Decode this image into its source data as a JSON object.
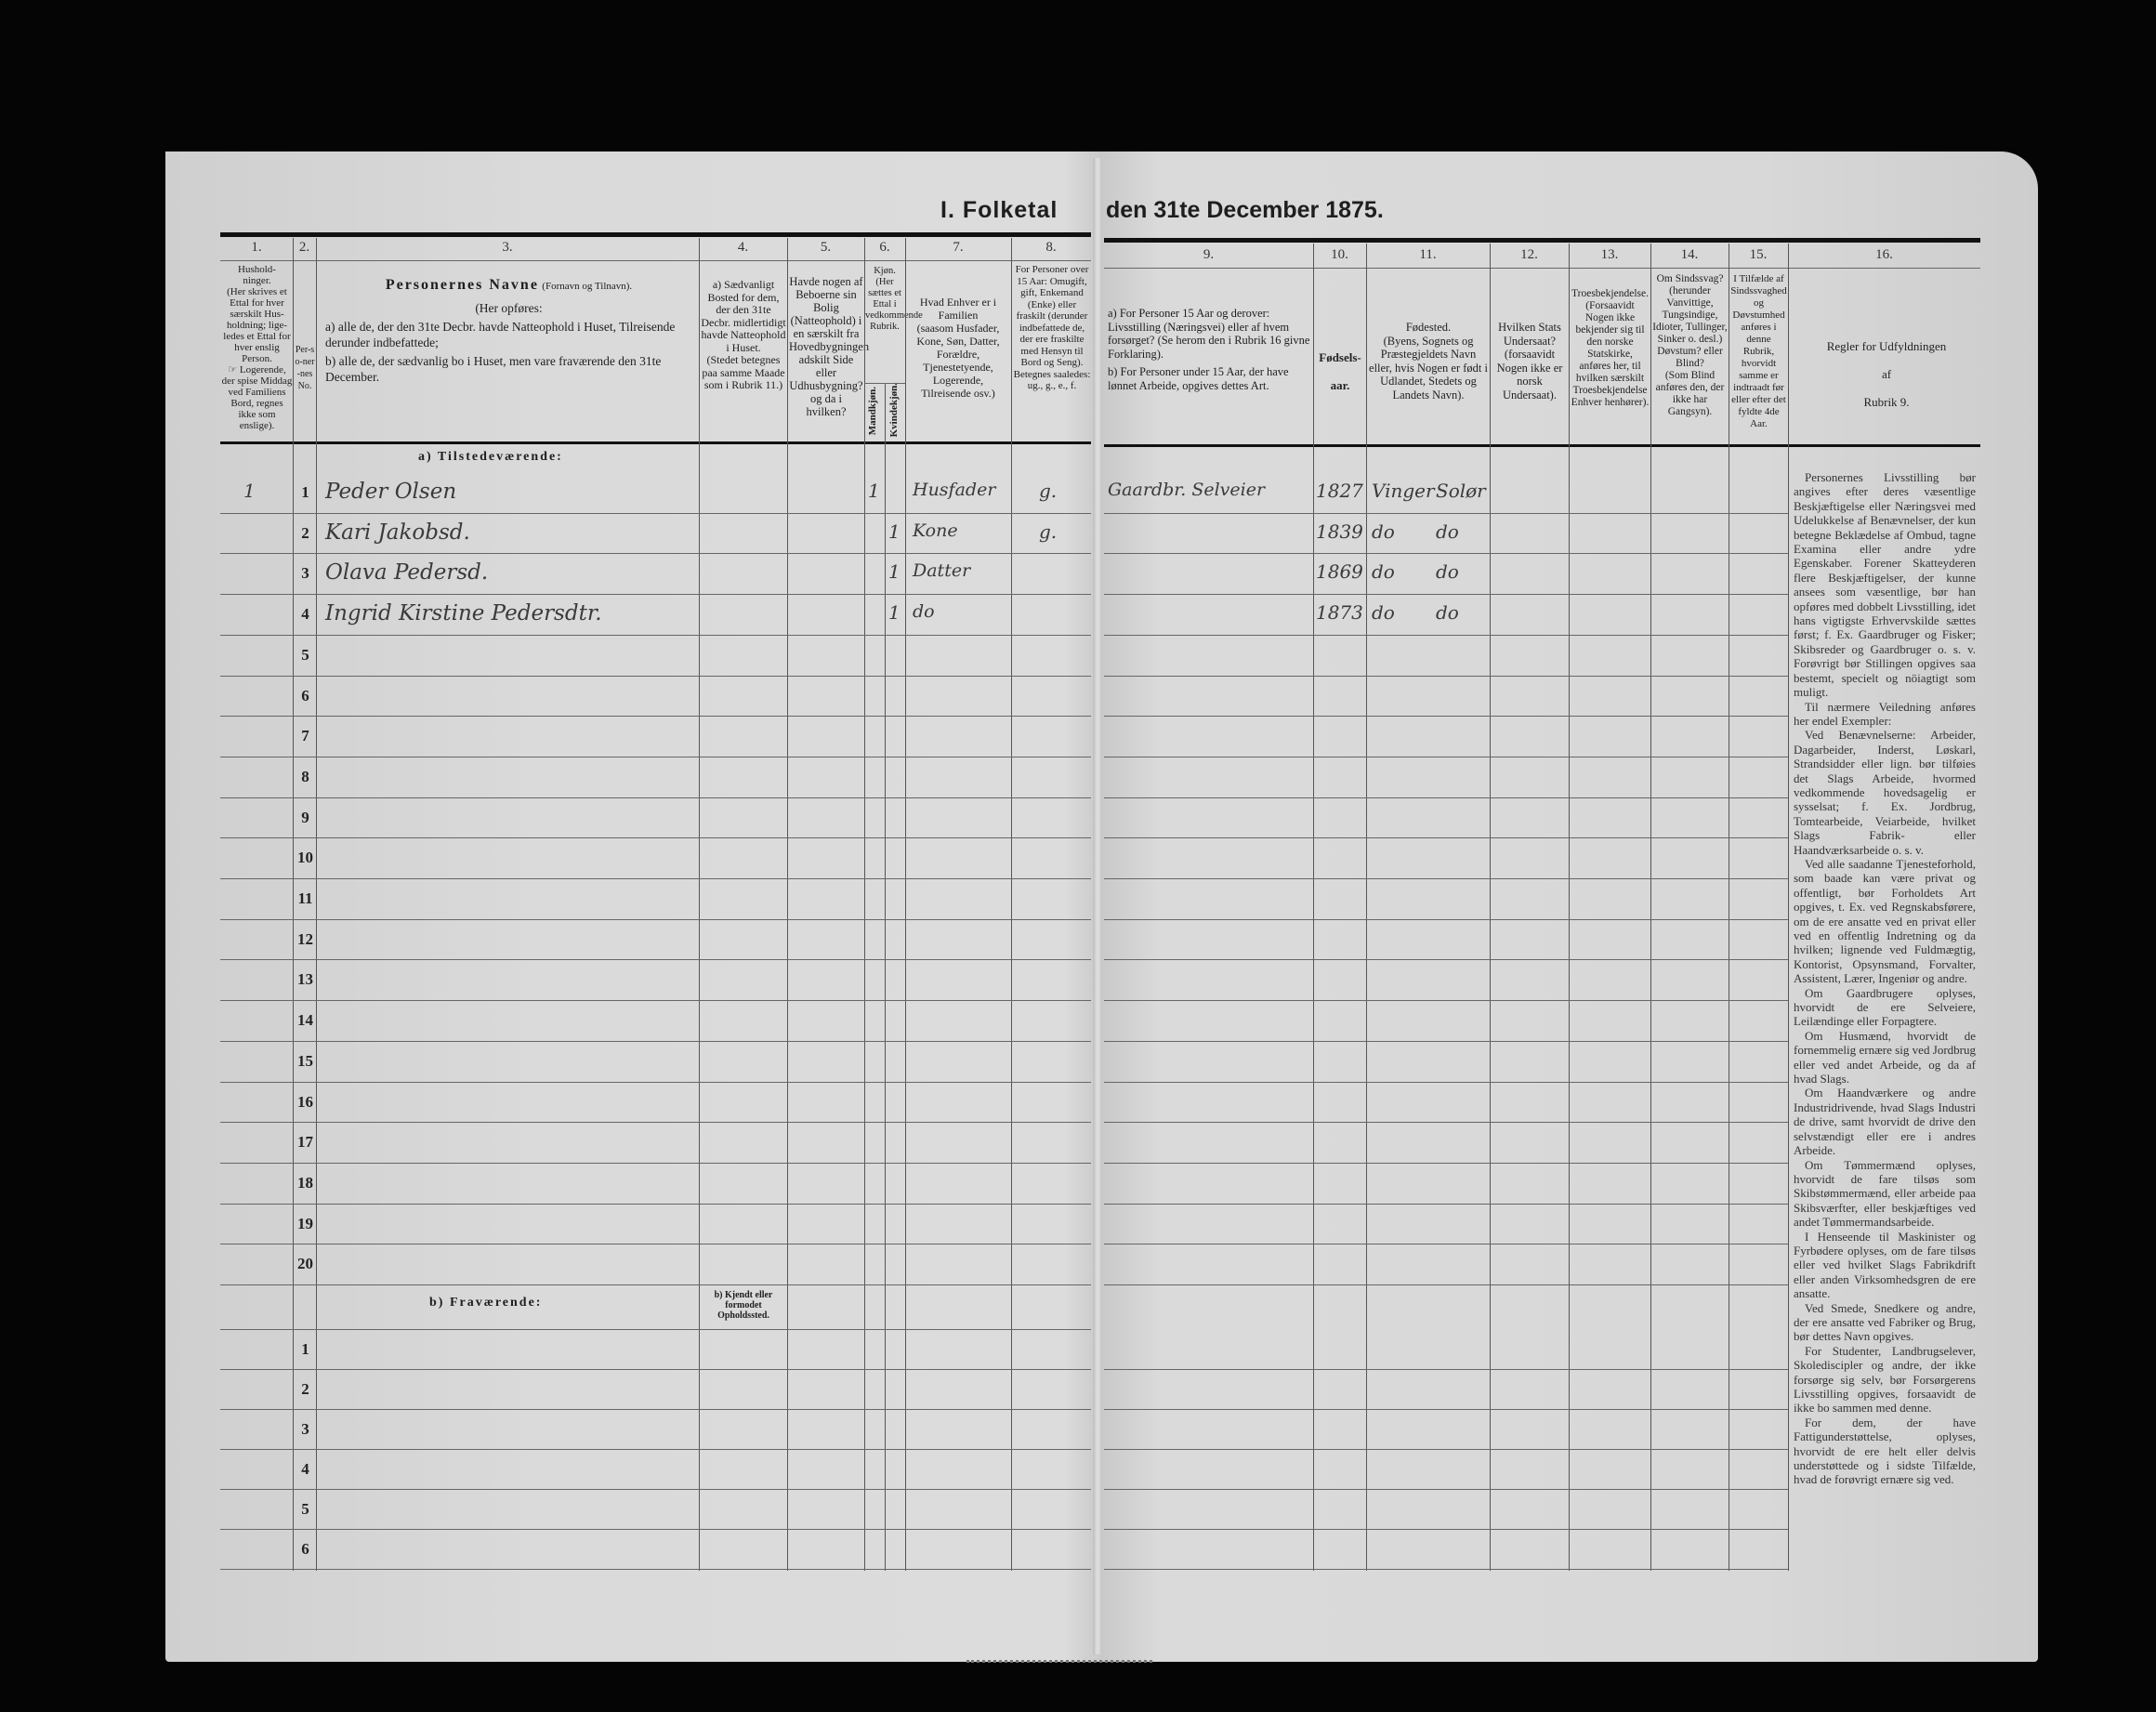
{
  "title": {
    "left": "I. Folketal",
    "right": "den 31te December 1875."
  },
  "columns_left": [
    {
      "num": "1.",
      "text": "Hushold-\nninger.\n(Her skrives et Ettal for hver særskilt Hus-holdning; lige-ledes et Ettal for hver enslig Person.\n☞ Logerende, der spise Middag ved Familiens Bord, regnes ikke som enslige)."
    },
    {
      "num": "2.",
      "text": "Per-so-ner-nes No."
    },
    {
      "num": "3.",
      "title": "Personernes Navne",
      "title_note": "(Fornavn og Tilnavn).",
      "sub": "(Her opføres:",
      "a": "a) alle de, der den 31te Decbr. havde Natteophold i Huset, Tilreisende derunder indbefattede;",
      "b": "b) alle de, der sædvanlig bo i Huset, men vare fraværende den 31te December."
    },
    {
      "num": "4.",
      "text": "a) Sædvanligt Bosted for dem, der den 31te Decbr. midlertidigt havde Natteophold i Huset.\n(Stedet betegnes paa samme Maade som i Rubrik 11.)"
    },
    {
      "num": "5.",
      "text": "Havde nogen af Beboerne sin Bolig (Natteophold) i en særskilt fra Hovedbygningen adskilt Side eller Udhusbygning? og da i hvilken?"
    },
    {
      "num": "6.",
      "text": "Kjøn.\n(Her sættes et Ettal i vedkommende Rubrik.",
      "male": "Mandkjøn.",
      "female": "Kvindekjøn."
    },
    {
      "num": "7.",
      "text": "Hvad Enhver er i Familien\n(saasom Husfader, Kone, Søn, Datter, Forældre, Tjenestetyende, Logerende, Tilreisende osv.)"
    },
    {
      "num": "8.",
      "text": "For Personer over 15 Aar: Omugift, gift, Enkemand (Enke) eller fraskilt (derunder indbefattede de, der ere fraskilte med Hensyn til Bord og Seng).\nBetegnes saaledes: ug., g., e., f."
    }
  ],
  "columns_right": [
    {
      "num": "9.",
      "a": "a) For Personer 15 Aar og derover: Livsstilling (Næringsvei) eller af hvem forsørget? (Se herom den i Rubrik 16 givne Forklaring).",
      "b": "b) For Personer under 15 Aar, der have lønnet Arbeide, opgives dettes Art."
    },
    {
      "num": "10.",
      "text": "Fødsels-\naar."
    },
    {
      "num": "11.",
      "text": "Fødested.\n(Byens, Sognets og Præstegjeldets Navn eller, hvis Nogen er født i Udlandet, Stedets og Landets Navn)."
    },
    {
      "num": "12.",
      "text": "Hvilken Stats Undersaat?\n(forsaavidt Nogen ikke er norsk Undersaat)."
    },
    {
      "num": "13.",
      "text": "Troesbekjendelse.\n(Forsaavidt Nogen ikke bekjender sig til den norske Statskirke, anføres her, til hvilken særskilt Troesbekjendelse Enhver henhører)."
    },
    {
      "num": "14.",
      "text": "Om Sindssvag?\n(herunder Vanvittige, Tungsindige, Idioter, Tullinger, Sinker o. desl.)\nDøvstum? eller Blind?\n(Som Blind anføres den, der ikke har Gangsyn)."
    },
    {
      "num": "15.",
      "text": "I Tilfælde af Sindssvaghed og Døvstumhed anføres i denne Rubrik, hvorvidt samme er indtraadt før eller efter det fyldte 4de Aar."
    },
    {
      "num": "16.",
      "text": "Regler for Udfyldningen\naf\nRubrik 9."
    }
  ],
  "section_present": "a) Tilstedeværende:",
  "section_absent": "b) Fraværende:",
  "absent_col4": "b) Kjendt eller formodet Opholdssted.",
  "present_row_numbers": [
    "1",
    "2",
    "3",
    "4",
    "5",
    "6",
    "7",
    "8",
    "9",
    "10",
    "11",
    "12",
    "13",
    "14",
    "15",
    "16",
    "17",
    "18",
    "19",
    "20"
  ],
  "absent_row_numbers": [
    "1",
    "2",
    "3",
    "4",
    "5",
    "6"
  ],
  "persons": [
    {
      "household": "1",
      "name": "Peder Olsen",
      "male": "1",
      "female": "",
      "family": "Husfader",
      "civil": "g.",
      "occupation": "Gaardbr. Selveier",
      "birth_year": "1827",
      "birthplace_1": "Vinger",
      "birthplace_2": "Solør"
    },
    {
      "household": "",
      "name": "Kari Jakobsd.",
      "male": "",
      "female": "1",
      "family": "Kone",
      "civil": "g.",
      "occupation": "",
      "birth_year": "1839",
      "birthplace_1": "do",
      "birthplace_2": "do"
    },
    {
      "household": "",
      "name": "Olava Pedersd.",
      "male": "",
      "female": "1",
      "family": "Datter",
      "civil": "",
      "occupation": "",
      "birth_year": "1869",
      "birthplace_1": "do",
      "birthplace_2": "do"
    },
    {
      "household": "",
      "name": "Ingrid Kirstine Pedersdtr.",
      "male": "",
      "female": "1",
      "family": "do",
      "civil": "",
      "occupation": "",
      "birth_year": "1873",
      "birthplace_1": "do",
      "birthplace_2": "do"
    }
  ],
  "rules_paragraphs": [
    "Personernes Livsstilling bør angives efter deres væsentlige Beskjæftigelse eller Næringsvei med Udelukkelse af Benævnelser, der kun betegne Beklædelse af Ombud, tagne Examina eller andre ydre Egenskaber. Forener Skatteyderen flere Beskjæftigelser, der kunne ansees som væsentlige, bør han opføres med dobbelt Livsstilling, idet hans vigtigste Erhvervskilde sættes først; f. Ex. Gaardbruger og Fisker; Skibsreder og Gaardbruger o. s. v. Forøvrigt bør Stillingen opgives saa bestemt, specielt og nöiagtigt som muligt.",
    "Til nærmere Veiledning anføres her endel Exempler:",
    "Ved Benævnelserne: Arbeider, Dagarbeider, Inderst, Løskarl, Strandsidder eller lign. bør tilføies det Slags Arbeide, hvormed vedkommende hovedsagelig er sysselsat; f. Ex. Jordbrug, Tomtearbeide, Veiarbeide, hvilket Slags Fabrik- eller Haandværksarbeide o. s. v.",
    "Ved alle saadanne Tjenesteforhold, som baade kan være privat og offentligt, bør Forholdets Art opgives, t. Ex. ved Regnskabsførere, om de ere ansatte ved en privat eller ved en offentlig Indretning og da hvilken; lignende ved Fuldmægtig, Kontorist, Opsynsmand, Forvalter, Assistent, Lærer, Ingeniør og andre.",
    "Om Gaardbrugere oplyses, hvorvidt de ere Selveiere, Leilændinge eller Forpagtere.",
    "Om Husmænd, hvorvidt de fornemmelig ernære sig ved Jordbrug eller ved andet Arbeide, og da af hvad Slags.",
    "Om Haandværkere og andre Industridrivende, hvad Slags Industri de drive, samt hvorvidt de drive den selvstændigt eller ere i andres Arbeide.",
    "Om Tømmermænd oplyses, hvorvidt de fare tilsøs som Skibstømmermænd, eller arbeide paa Skibsværfter, eller beskjæftiges ved andet Tømmermandsarbeide.",
    "I Henseende til Maskinister og Fyrbødere oplyses, om de fare tilsøs eller ved hvilket Slags Fabrikdrift eller anden Virksomhedsgren de ere ansatte.",
    "Ved Smede, Snedkere og andre, der ere ansatte ved Fabriker og Brug, bør dettes Navn opgives.",
    "For Studenter, Landbrugselever, Skolediscipler og andre, der ikke forsørge sig selv, bør Forsørgerens Livsstilling opgives, forsaavidt de ikke bo sammen med denne.",
    "For dem, der have Fattigunderstøttelse, oplyses, hvorvidt de ere helt eller delvis understøttede og i sidste Tilfælde, hvad de forøvrigt ernære sig ved."
  ]
}
